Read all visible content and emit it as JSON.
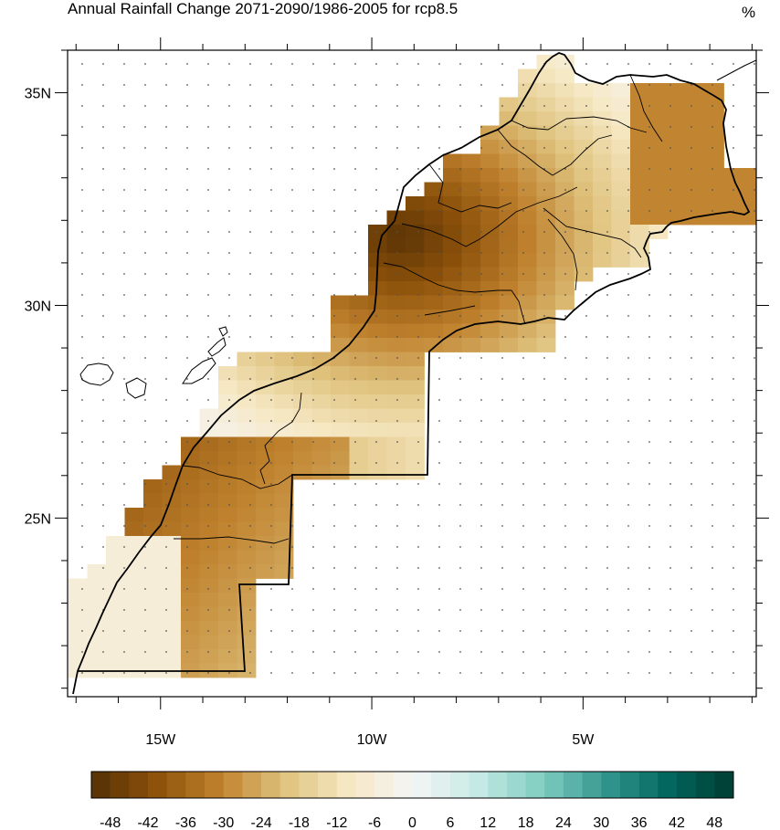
{
  "map": {
    "title": "Annual Rainfall Change 2071-2090/1986-2005 for rcp8.5",
    "units": "%",
    "region": "Morocco",
    "lon_range": [
      -17.2,
      -0.9
    ],
    "lat_range": [
      20.8,
      36.0
    ],
    "lat_ticks": [
      {
        "value": 35,
        "label": "35N"
      },
      {
        "value": 30,
        "label": "30N"
      },
      {
        "value": 25,
        "label": "25N"
      }
    ],
    "lon_ticks": [
      {
        "value": -15,
        "label": "15W"
      },
      {
        "value": -10,
        "label": "10W"
      },
      {
        "value": -5,
        "label": "5W"
      }
    ],
    "grid_dots": true
  },
  "colorbar": {
    "labels": [
      "-48",
      "-42",
      "-36",
      "-30",
      "-24",
      "-18",
      "-12",
      "-6",
      "0",
      "6",
      "12",
      "18",
      "24",
      "30",
      "36",
      "42",
      "48"
    ],
    "min": -51,
    "max": 51,
    "step": 3,
    "colors_dry_to_wet": [
      "#543005",
      "#8c510a",
      "#bf812d",
      "#dfc27d",
      "#f6e8c3",
      "#f5f5f5",
      "#c7eae5",
      "#80cdc1",
      "#35978f",
      "#01665e",
      "#003c30"
    ]
  }
}
